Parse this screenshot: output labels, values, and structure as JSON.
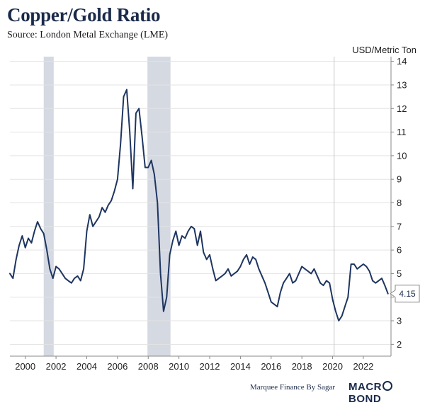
{
  "header": {
    "title": "Copper/Gold Ratio",
    "subtitle": "Source: London Metal Exchange (LME)"
  },
  "footer": {
    "credit": "Marquee Finance By Sagar",
    "brand_left": "MACR",
    "brand_right": "BOND"
  },
  "colors": {
    "line": "#1e3560",
    "recession": "#d5d9e2",
    "grid": "#e3e3e3",
    "axis": "#888888"
  },
  "chart_data": {
    "type": "line",
    "title": "Copper/Gold Ratio",
    "ylabel": "USD/Metric Ton",
    "xlabel": "",
    "xlim": [
      1999.0,
      2023.8
    ],
    "ylim": [
      1.5,
      14.2
    ],
    "yticks": [
      2,
      3,
      4,
      5,
      6,
      7,
      8,
      9,
      10,
      11,
      12,
      13,
      14
    ],
    "xticks": [
      2000,
      2002,
      2004,
      2006,
      2008,
      2010,
      2012,
      2014,
      2016,
      2018,
      2020,
      2022
    ],
    "recessions": [
      [
        2001.2,
        2001.85
      ],
      [
        2007.95,
        2009.45
      ]
    ],
    "marker_year": 2020.1,
    "last_value_label": "4.15",
    "series": [
      {
        "name": "Copper/Gold Ratio",
        "x": [
          1999.0,
          1999.2,
          1999.4,
          1999.6,
          1999.8,
          2000.0,
          2000.2,
          2000.4,
          2000.6,
          2000.8,
          2001.0,
          2001.2,
          2001.4,
          2001.6,
          2001.8,
          2002.0,
          2002.2,
          2002.4,
          2002.6,
          2002.8,
          2003.0,
          2003.2,
          2003.4,
          2003.6,
          2003.8,
          2004.0,
          2004.2,
          2004.4,
          2004.6,
          2004.8,
          2005.0,
          2005.2,
          2005.4,
          2005.6,
          2005.8,
          2006.0,
          2006.2,
          2006.4,
          2006.6,
          2006.8,
          2007.0,
          2007.2,
          2007.4,
          2007.6,
          2007.8,
          2008.0,
          2008.2,
          2008.4,
          2008.6,
          2008.8,
          2009.0,
          2009.2,
          2009.4,
          2009.6,
          2009.8,
          2010.0,
          2010.2,
          2010.4,
          2010.6,
          2010.8,
          2011.0,
          2011.2,
          2011.4,
          2011.6,
          2011.8,
          2012.0,
          2012.2,
          2012.4,
          2012.6,
          2012.8,
          2013.0,
          2013.2,
          2013.4,
          2013.6,
          2013.8,
          2014.0,
          2014.2,
          2014.4,
          2014.6,
          2014.8,
          2015.0,
          2015.2,
          2015.4,
          2015.6,
          2015.8,
          2016.0,
          2016.2,
          2016.4,
          2016.6,
          2016.8,
          2017.0,
          2017.2,
          2017.4,
          2017.6,
          2017.8,
          2018.0,
          2018.2,
          2018.4,
          2018.6,
          2018.8,
          2019.0,
          2019.2,
          2019.4,
          2019.6,
          2019.8,
          2020.0,
          2020.2,
          2020.4,
          2020.6,
          2020.8,
          2021.0,
          2021.2,
          2021.4,
          2021.6,
          2021.8,
          2022.0,
          2022.2,
          2022.4,
          2022.6,
          2022.8,
          2023.0,
          2023.2,
          2023.4,
          2023.6
        ],
        "values": [
          5.0,
          4.8,
          5.6,
          6.2,
          6.6,
          6.1,
          6.5,
          6.3,
          6.8,
          7.2,
          6.9,
          6.7,
          6.0,
          5.2,
          4.8,
          5.3,
          5.2,
          5.0,
          4.8,
          4.7,
          4.6,
          4.8,
          4.9,
          4.7,
          5.2,
          6.8,
          7.5,
          7.0,
          7.2,
          7.4,
          7.8,
          7.6,
          7.9,
          8.1,
          8.5,
          9.0,
          10.5,
          12.5,
          12.8,
          11.0,
          8.6,
          11.8,
          12.0,
          10.8,
          9.5,
          9.5,
          9.8,
          9.2,
          8.0,
          5.0,
          3.4,
          4.0,
          5.8,
          6.4,
          6.8,
          6.2,
          6.6,
          6.5,
          6.8,
          7.0,
          6.9,
          6.2,
          6.8,
          5.9,
          5.6,
          5.8,
          5.2,
          4.7,
          4.8,
          4.9,
          5.0,
          5.2,
          4.9,
          5.0,
          5.1,
          5.3,
          5.6,
          5.8,
          5.4,
          5.7,
          5.6,
          5.2,
          4.9,
          4.6,
          4.2,
          3.8,
          3.7,
          3.6,
          4.2,
          4.6,
          4.8,
          5.0,
          4.6,
          4.7,
          5.0,
          5.3,
          5.2,
          5.1,
          5.0,
          5.2,
          4.9,
          4.6,
          4.5,
          4.7,
          4.6,
          3.9,
          3.4,
          3.0,
          3.2,
          3.6,
          4.0,
          5.4,
          5.4,
          5.2,
          5.3,
          5.4,
          5.3,
          5.1,
          4.7,
          4.6,
          4.7,
          4.8,
          4.5,
          4.15
        ]
      }
    ]
  }
}
